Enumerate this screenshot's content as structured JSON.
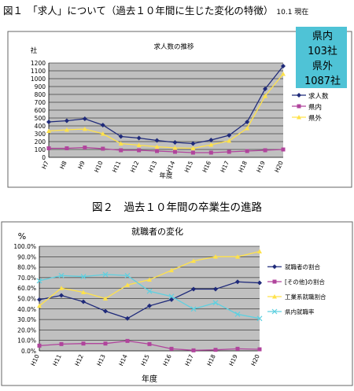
{
  "figure1": {
    "heading": "図１　「求人」について（過去１０年間に生じた変化の特徴）",
    "note": "10.1 現在",
    "callout": [
      "県内",
      "103社",
      "県外",
      "1087社"
    ]
  },
  "figure2": {
    "heading": "図２　過去１０年間の卒業生の進路"
  },
  "chart_data": [
    {
      "type": "line",
      "title": "求人数の推移",
      "ylabel": "社",
      "xlabel": "年度",
      "categories": [
        "H7",
        "H8",
        "H9",
        "H10",
        "H11",
        "H12",
        "H13",
        "H14",
        "H15",
        "H16",
        "H17",
        "H18",
        "H19",
        "H20"
      ],
      "ylim": [
        0,
        1200
      ],
      "yticks": [
        0,
        100,
        200,
        300,
        400,
        500,
        600,
        700,
        800,
        900,
        1000,
        1100,
        1200
      ],
      "grid": true,
      "legend": "right",
      "series": [
        {
          "name": "求人数",
          "color": "#1f2a7a",
          "marker": "diamond",
          "values": [
            450,
            465,
            490,
            410,
            265,
            245,
            215,
            190,
            175,
            220,
            280,
            450,
            870,
            1160
          ]
        },
        {
          "name": "県内",
          "color": "#b0449c",
          "marker": "square",
          "values": [
            115,
            115,
            125,
            110,
            90,
            90,
            80,
            70,
            60,
            60,
            70,
            80,
            90,
            100
          ]
        },
        {
          "name": "県外",
          "color": "#ffe24a",
          "marker": "triangle",
          "values": [
            335,
            350,
            360,
            300,
            175,
            155,
            135,
            120,
            115,
            160,
            210,
            370,
            780,
            1060
          ]
        }
      ]
    },
    {
      "type": "line",
      "title": "就職者の変化",
      "ylabel": "%",
      "xlabel": "年度",
      "categories": [
        "H10",
        "H11",
        "H12",
        "H13",
        "H14",
        "H15",
        "H16",
        "H17",
        "H18",
        "H19",
        "H20"
      ],
      "ylim": [
        0,
        100
      ],
      "yticks": [
        "0.0%",
        "10.0%",
        "20.0%",
        "30.0%",
        "40.0%",
        "50.0%",
        "60.0%",
        "70.0%",
        "80.0%",
        "90.0%",
        "100.0%"
      ],
      "grid": true,
      "legend": "right",
      "series": [
        {
          "name": "就職者の割合",
          "color": "#1f2a7a",
          "marker": "diamond",
          "values": [
            49,
            53,
            47,
            38,
            31,
            43,
            49,
            59,
            59,
            66,
            65
          ]
        },
        {
          "name": "[その他]の割合",
          "color": "#b0449c",
          "marker": "square",
          "values": [
            5,
            6.5,
            7,
            7,
            9.5,
            6.5,
            2,
            0.5,
            1,
            2,
            1.5
          ]
        },
        {
          "name": "工業系就職割合",
          "color": "#ffe24a",
          "marker": "triangle",
          "values": [
            43,
            60,
            56,
            50,
            63,
            68,
            77,
            86,
            90,
            90,
            95
          ]
        },
        {
          "name": "県内就職率",
          "color": "#5fd0e0",
          "marker": "x",
          "values": [
            67,
            72,
            71,
            73,
            72,
            57,
            52,
            40,
            46,
            35,
            31
          ]
        }
      ]
    }
  ]
}
